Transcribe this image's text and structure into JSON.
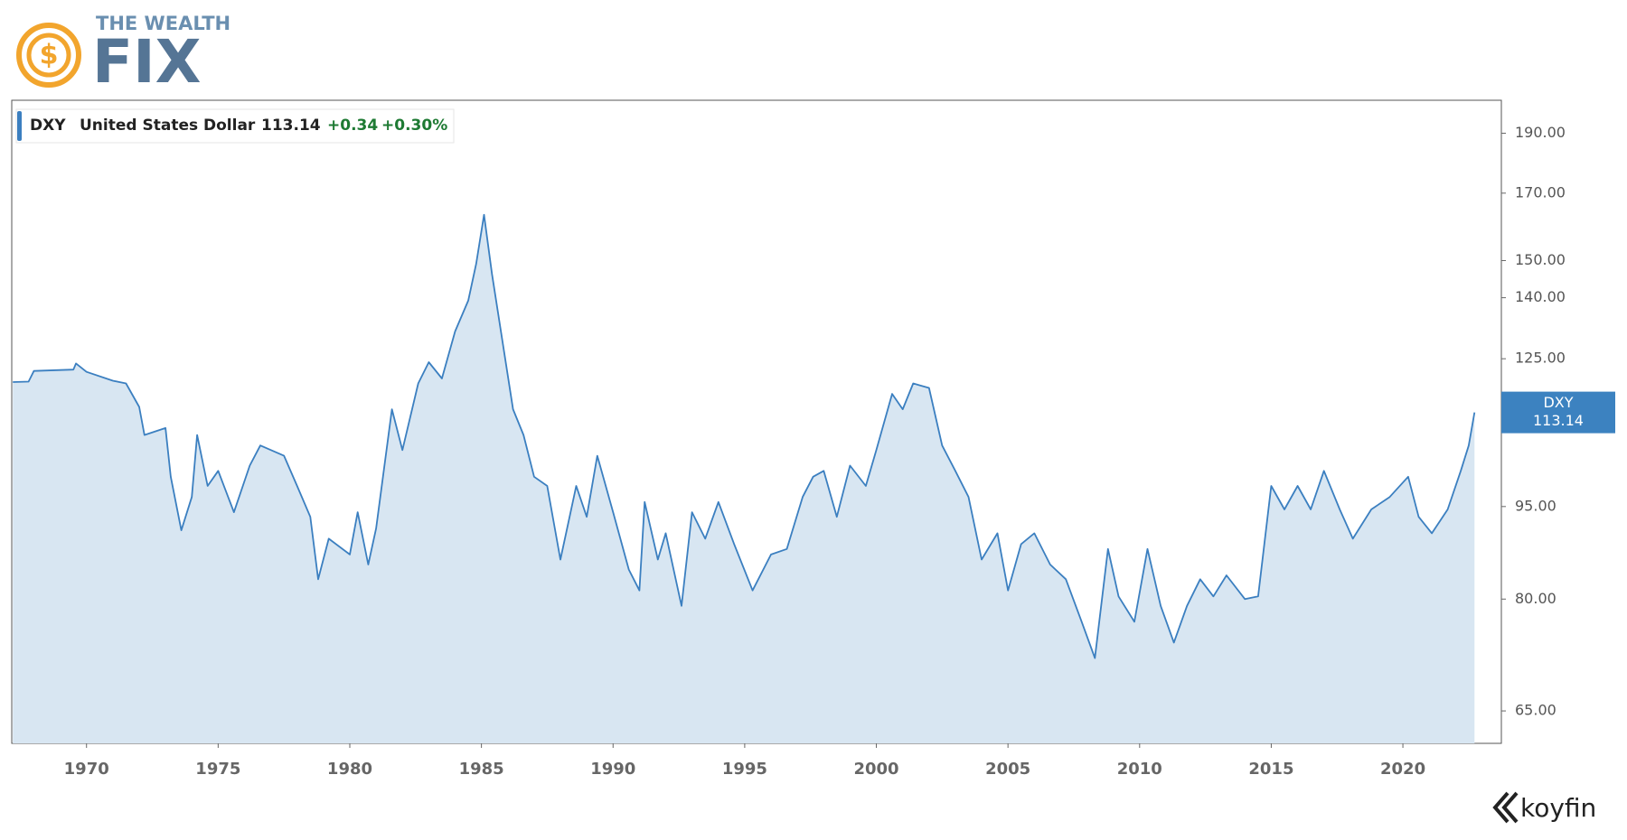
{
  "brand": {
    "line1": "THE WEALTH",
    "line2": "FIX",
    "source": "koyfin"
  },
  "chart_data": {
    "type": "area",
    "ticker": "DXY",
    "name": "United States Dollar",
    "price": 113.14,
    "change": "+0.34",
    "change_pct": "+0.30%",
    "log_scale": true,
    "xlim": [
      1967.16,
      2023.74
    ],
    "xticks": [
      1970,
      1975,
      1980,
      1985,
      1990,
      1995,
      2000,
      2005,
      2010,
      2015,
      2020
    ],
    "ylim": [
      61.2,
      202
    ],
    "yticks": [
      {
        "value": 65,
        "label": "65.00"
      },
      {
        "value": 80,
        "label": "80.00"
      },
      {
        "value": 95,
        "label": "95.00"
      },
      {
        "value": 125,
        "label": "125.00"
      },
      {
        "value": 140,
        "label": "140.00"
      },
      {
        "value": 150,
        "label": "150.00"
      },
      {
        "value": 170,
        "label": "170.00"
      },
      {
        "value": 190,
        "label": "190.00"
      }
    ],
    "x": [
      1967.2,
      1967.8,
      1968.0,
      1969.5,
      1969.6,
      1970.0,
      1971.0,
      1971.5,
      1972.0,
      1972.2,
      1973.0,
      1973.2,
      1973.6,
      1974.0,
      1974.2,
      1974.6,
      1975.0,
      1975.6,
      1976.2,
      1976.6,
      1977.5,
      1978.0,
      1978.5,
      1978.8,
      1979.2,
      1980.0,
      1980.3,
      1980.7,
      1981.0,
      1981.6,
      1982.0,
      1982.6,
      1983.0,
      1983.5,
      1984.0,
      1984.5,
      1984.8,
      1985.1,
      1985.4,
      1985.8,
      1986.2,
      1986.6,
      1987.0,
      1987.5,
      1988.0,
      1988.6,
      1989.0,
      1989.4,
      1990.0,
      1990.6,
      1991.0,
      1991.2,
      1991.7,
      1992.0,
      1992.6,
      1993.0,
      1993.5,
      1994.0,
      1994.6,
      1995.3,
      1996.0,
      1996.6,
      1997.2,
      1997.6,
      1998.0,
      1998.5,
      1999.0,
      1999.6,
      2000.0,
      2000.6,
      2001.0,
      2001.4,
      2002.0,
      2002.5,
      2003.0,
      2003.5,
      2004.0,
      2004.6,
      2005.0,
      2005.5,
      2006.0,
      2006.6,
      2007.2,
      2007.8,
      2008.3,
      2008.8,
      2009.2,
      2009.8,
      2010.3,
      2010.8,
      2011.3,
      2011.8,
      2012.3,
      2012.8,
      2013.3,
      2014.0,
      2014.5,
      2015.0,
      2015.5,
      2016.0,
      2016.5,
      2017.0,
      2017.6,
      2018.1,
      2018.8,
      2019.5,
      2020.2,
      2020.6,
      2021.1,
      2021.7,
      2022.2,
      2022.5,
      2022.72
    ],
    "series": [
      {
        "name": "DXY",
        "color": "#3b7fc0",
        "fill": "#d8e6f2",
        "values": [
          119.7,
          119.8,
          122.2,
          122.5,
          123.9,
          122,
          120,
          119.4,
          114.3,
          108.5,
          109.9,
          100.4,
          90.9,
          96.7,
          108.5,
          98.7,
          101.5,
          94.0,
          102.5,
          106.4,
          104.4,
          98.7,
          93.2,
          83.0,
          89.5,
          86.9,
          94.0,
          85.3,
          91.2,
          113.8,
          105.5,
          119.4,
          124.2,
          120.5,
          131.5,
          139.3,
          149.1,
          163.3,
          146.3,
          129.1,
          113.8,
          108.5,
          100.4,
          98.7,
          86.1,
          98.7,
          93.2,
          104.4,
          94.0,
          84.5,
          81.3,
          95.8,
          86.1,
          90.4,
          79.0,
          94.0,
          89.5,
          95.8,
          88.6,
          81.3,
          86.9,
          87.8,
          96.7,
          100.4,
          101.5,
          93.2,
          102.5,
          98.7,
          105.5,
          117.1,
          113.8,
          119.4,
          118.4,
          106.4,
          101.5,
          96.7,
          86.1,
          90.4,
          81.3,
          88.6,
          90.4,
          85.3,
          83.0,
          76.7,
          71.7,
          87.8,
          80.4,
          76.7,
          87.8,
          79.0,
          73.8,
          79.0,
          83.0,
          80.4,
          83.6,
          80.0,
          80.4,
          98.7,
          94.5,
          98.7,
          94.5,
          101.5,
          94.5,
          89.5,
          94.5,
          96.7,
          100.4,
          93.2,
          90.4,
          94.5,
          101.5,
          106.4,
          113.14
        ]
      }
    ]
  }
}
